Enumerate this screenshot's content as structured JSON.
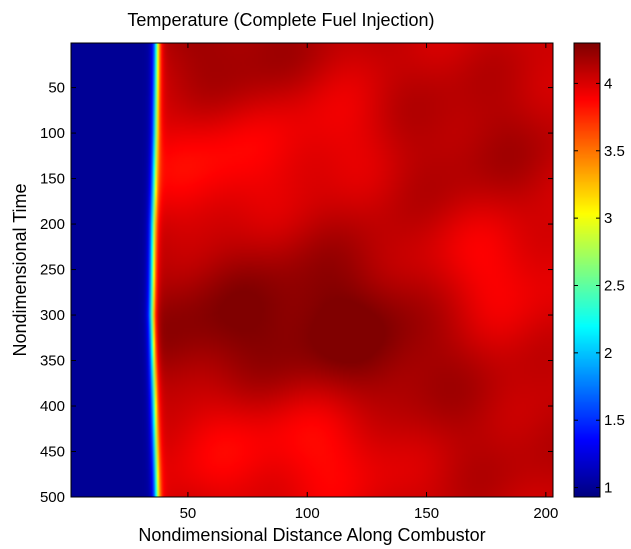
{
  "chart_data": {
    "type": "heatmap",
    "title": "Temperature (Complete Fuel Injection)",
    "xlabel": "Nondimensional Distance Along Combustor",
    "ylabel": "Nondimensional Time",
    "xlim": [
      1,
      203
    ],
    "ylim": [
      1,
      500
    ],
    "y_reversed": true,
    "xticks": [
      50,
      100,
      150,
      200
    ],
    "yticks": [
      50,
      100,
      150,
      200,
      250,
      300,
      350,
      400,
      450,
      500
    ],
    "colormap": "jet",
    "clim": [
      0.93,
      4.3
    ],
    "colorbar_ticks": [
      1,
      1.5,
      2,
      2.5,
      3,
      3.5,
      4
    ],
    "colorbar_tick_labels": [
      "1",
      "1.5",
      "2",
      "2.5",
      "3",
      "3.5",
      "4"
    ],
    "front_x": [
      [
        1,
        37
      ],
      [
        100,
        36.5
      ],
      [
        200,
        35.5
      ],
      [
        300,
        35
      ],
      [
        400,
        36
      ],
      [
        500,
        37
      ]
    ],
    "pre_front_value": 1.0,
    "post_front_value_range": [
      3.85,
      4.2
    ],
    "hot_spots": [
      {
        "t": 15,
        "x": 70,
        "value": 4.22
      },
      {
        "t": 320,
        "x": 55,
        "value": 4.25
      },
      {
        "t": 300,
        "x": 110,
        "value": 4.22
      },
      {
        "t": 350,
        "x": 135,
        "value": 4.18
      },
      {
        "t": 120,
        "x": 175,
        "value": 4.15
      },
      {
        "t": 450,
        "x": 185,
        "value": 4.1
      },
      {
        "t": 80,
        "x": 120,
        "value": 4.12
      }
    ],
    "cool_spots": [
      {
        "t": 90,
        "x": 110,
        "value": 3.8
      },
      {
        "t": 130,
        "x": 60,
        "value": 3.82
      },
      {
        "t": 440,
        "x": 110,
        "value": 3.82
      },
      {
        "t": 430,
        "x": 60,
        "value": 3.88
      },
      {
        "t": 250,
        "x": 175,
        "value": 3.85
      }
    ]
  }
}
